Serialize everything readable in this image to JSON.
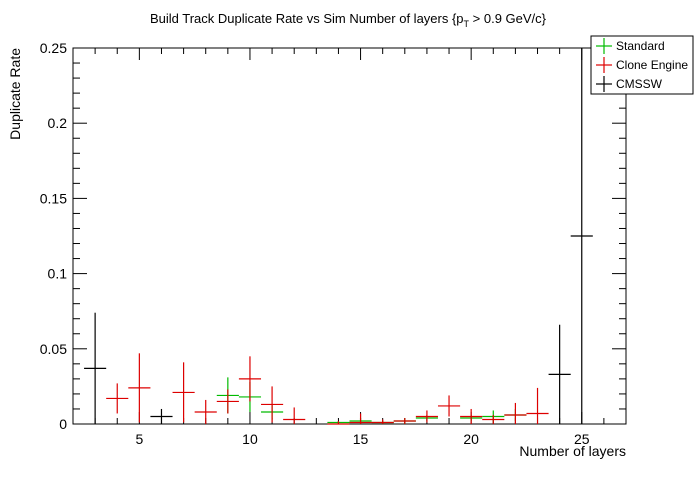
{
  "chart_data": {
    "type": "scatter",
    "title_main": "Build Track Duplicate Rate vs Sim Number of layers {p",
    "title_sub": "T",
    "title_tail": " > 0.9 GeV/c}",
    "xlabel": "Number of layers",
    "ylabel": "Duplicate Rate",
    "xlim": [
      2,
      27
    ],
    "ylim": [
      0,
      0.25
    ],
    "x_ticks": [
      5,
      10,
      15,
      20,
      25
    ],
    "y_ticks": [
      0,
      0.05,
      0.1,
      0.15,
      0.2,
      0.25
    ],
    "y_tick_labels": [
      "0",
      "0.05",
      "0.1",
      "0.15",
      "0.2",
      "0.25"
    ],
    "grid": false,
    "legend_position": "top-right",
    "series": [
      {
        "name": "Standard",
        "color": "#00bb00",
        "points": [
          {
            "x": 9,
            "y": 0.019,
            "err": 0.012
          },
          {
            "x": 10,
            "y": 0.018,
            "err": 0.01
          },
          {
            "x": 11,
            "y": 0.008,
            "err": 0.005
          },
          {
            "x": 14,
            "y": 0.001,
            "err": 0.001
          },
          {
            "x": 15,
            "y": 0.002,
            "err": 0.002
          },
          {
            "x": 16,
            "y": 0.001,
            "err": 0.001
          },
          {
            "x": 17,
            "y": 0.002,
            "err": 0.002
          },
          {
            "x": 18,
            "y": 0.004,
            "err": 0.002
          },
          {
            "x": 20,
            "y": 0.004,
            "err": 0.002
          },
          {
            "x": 21,
            "y": 0.005,
            "err": 0.004
          },
          {
            "x": 22,
            "y": 0.006,
            "err": 0.004
          }
        ]
      },
      {
        "name": "Clone Engine",
        "color": "#dd0000",
        "points": [
          {
            "x": 4,
            "y": 0.017,
            "err": 0.01
          },
          {
            "x": 5,
            "y": 0.024,
            "err": 0.023
          },
          {
            "x": 7,
            "y": 0.021,
            "err": 0.02
          },
          {
            "x": 8,
            "y": 0.008,
            "err": 0.008
          },
          {
            "x": 9,
            "y": 0.015,
            "err": 0.008
          },
          {
            "x": 10,
            "y": 0.03,
            "err": 0.015
          },
          {
            "x": 11,
            "y": 0.013,
            "err": 0.012
          },
          {
            "x": 12,
            "y": 0.003,
            "err": 0.008
          },
          {
            "x": 14,
            "y": 0.0,
            "err": 0.002
          },
          {
            "x": 15,
            "y": 0.001,
            "err": 0.006
          },
          {
            "x": 16,
            "y": 0.001,
            "err": 0.002
          },
          {
            "x": 17,
            "y": 0.002,
            "err": 0.002
          },
          {
            "x": 18,
            "y": 0.005,
            "err": 0.004
          },
          {
            "x": 19,
            "y": 0.012,
            "err": 0.007
          },
          {
            "x": 20,
            "y": 0.005,
            "err": 0.005
          },
          {
            "x": 21,
            "y": 0.003,
            "err": 0.003
          },
          {
            "x": 22,
            "y": 0.006,
            "err": 0.008
          },
          {
            "x": 23,
            "y": 0.007,
            "err": 0.017
          }
        ]
      },
      {
        "name": "CMSSW",
        "color": "#000000",
        "points": [
          {
            "x": 3,
            "y": 0.037,
            "err": 0.037
          },
          {
            "x": 6,
            "y": 0.005,
            "err": 0.005
          },
          {
            "x": 24,
            "y": 0.033,
            "err": 0.033
          },
          {
            "x": 25,
            "y": 0.125,
            "err": 0.125
          }
        ]
      }
    ]
  }
}
